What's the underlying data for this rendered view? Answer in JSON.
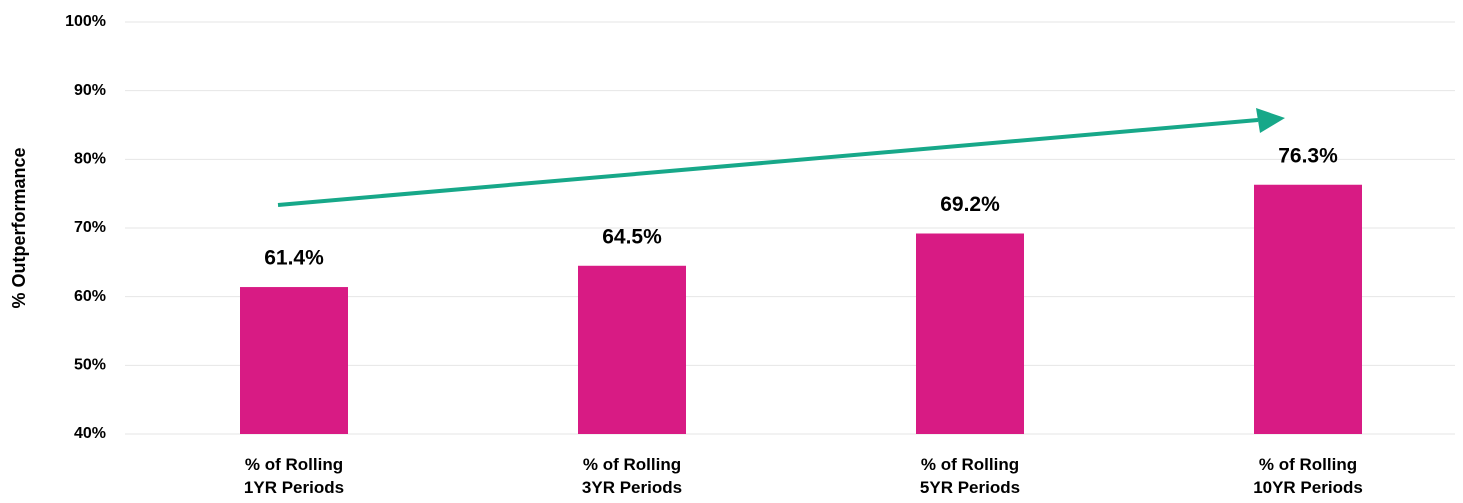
{
  "chart_data": {
    "type": "bar",
    "y_label": "% Outperformance",
    "categories": [
      "% of Rolling\n1YR Periods",
      "% of Rolling\n3YR Periods",
      "% of Rolling\n5YR Periods",
      "% of Rolling\n10YR Periods"
    ],
    "values": [
      61.4,
      64.5,
      69.2,
      76.3
    ],
    "value_labels": [
      "61.4%",
      "64.5%",
      "69.2%",
      "76.3%"
    ],
    "color": "#d81b84",
    "ylim": [
      40,
      100
    ],
    "yticks": [
      {
        "value": 40,
        "label": "40%"
      },
      {
        "value": 50,
        "label": "50%"
      },
      {
        "value": 60,
        "label": "60%"
      },
      {
        "value": 70,
        "label": "70%"
      },
      {
        "value": 80,
        "label": "80%"
      },
      {
        "value": 90,
        "label": "90%"
      },
      {
        "value": 100,
        "label": "100%"
      }
    ],
    "grid": true
  }
}
